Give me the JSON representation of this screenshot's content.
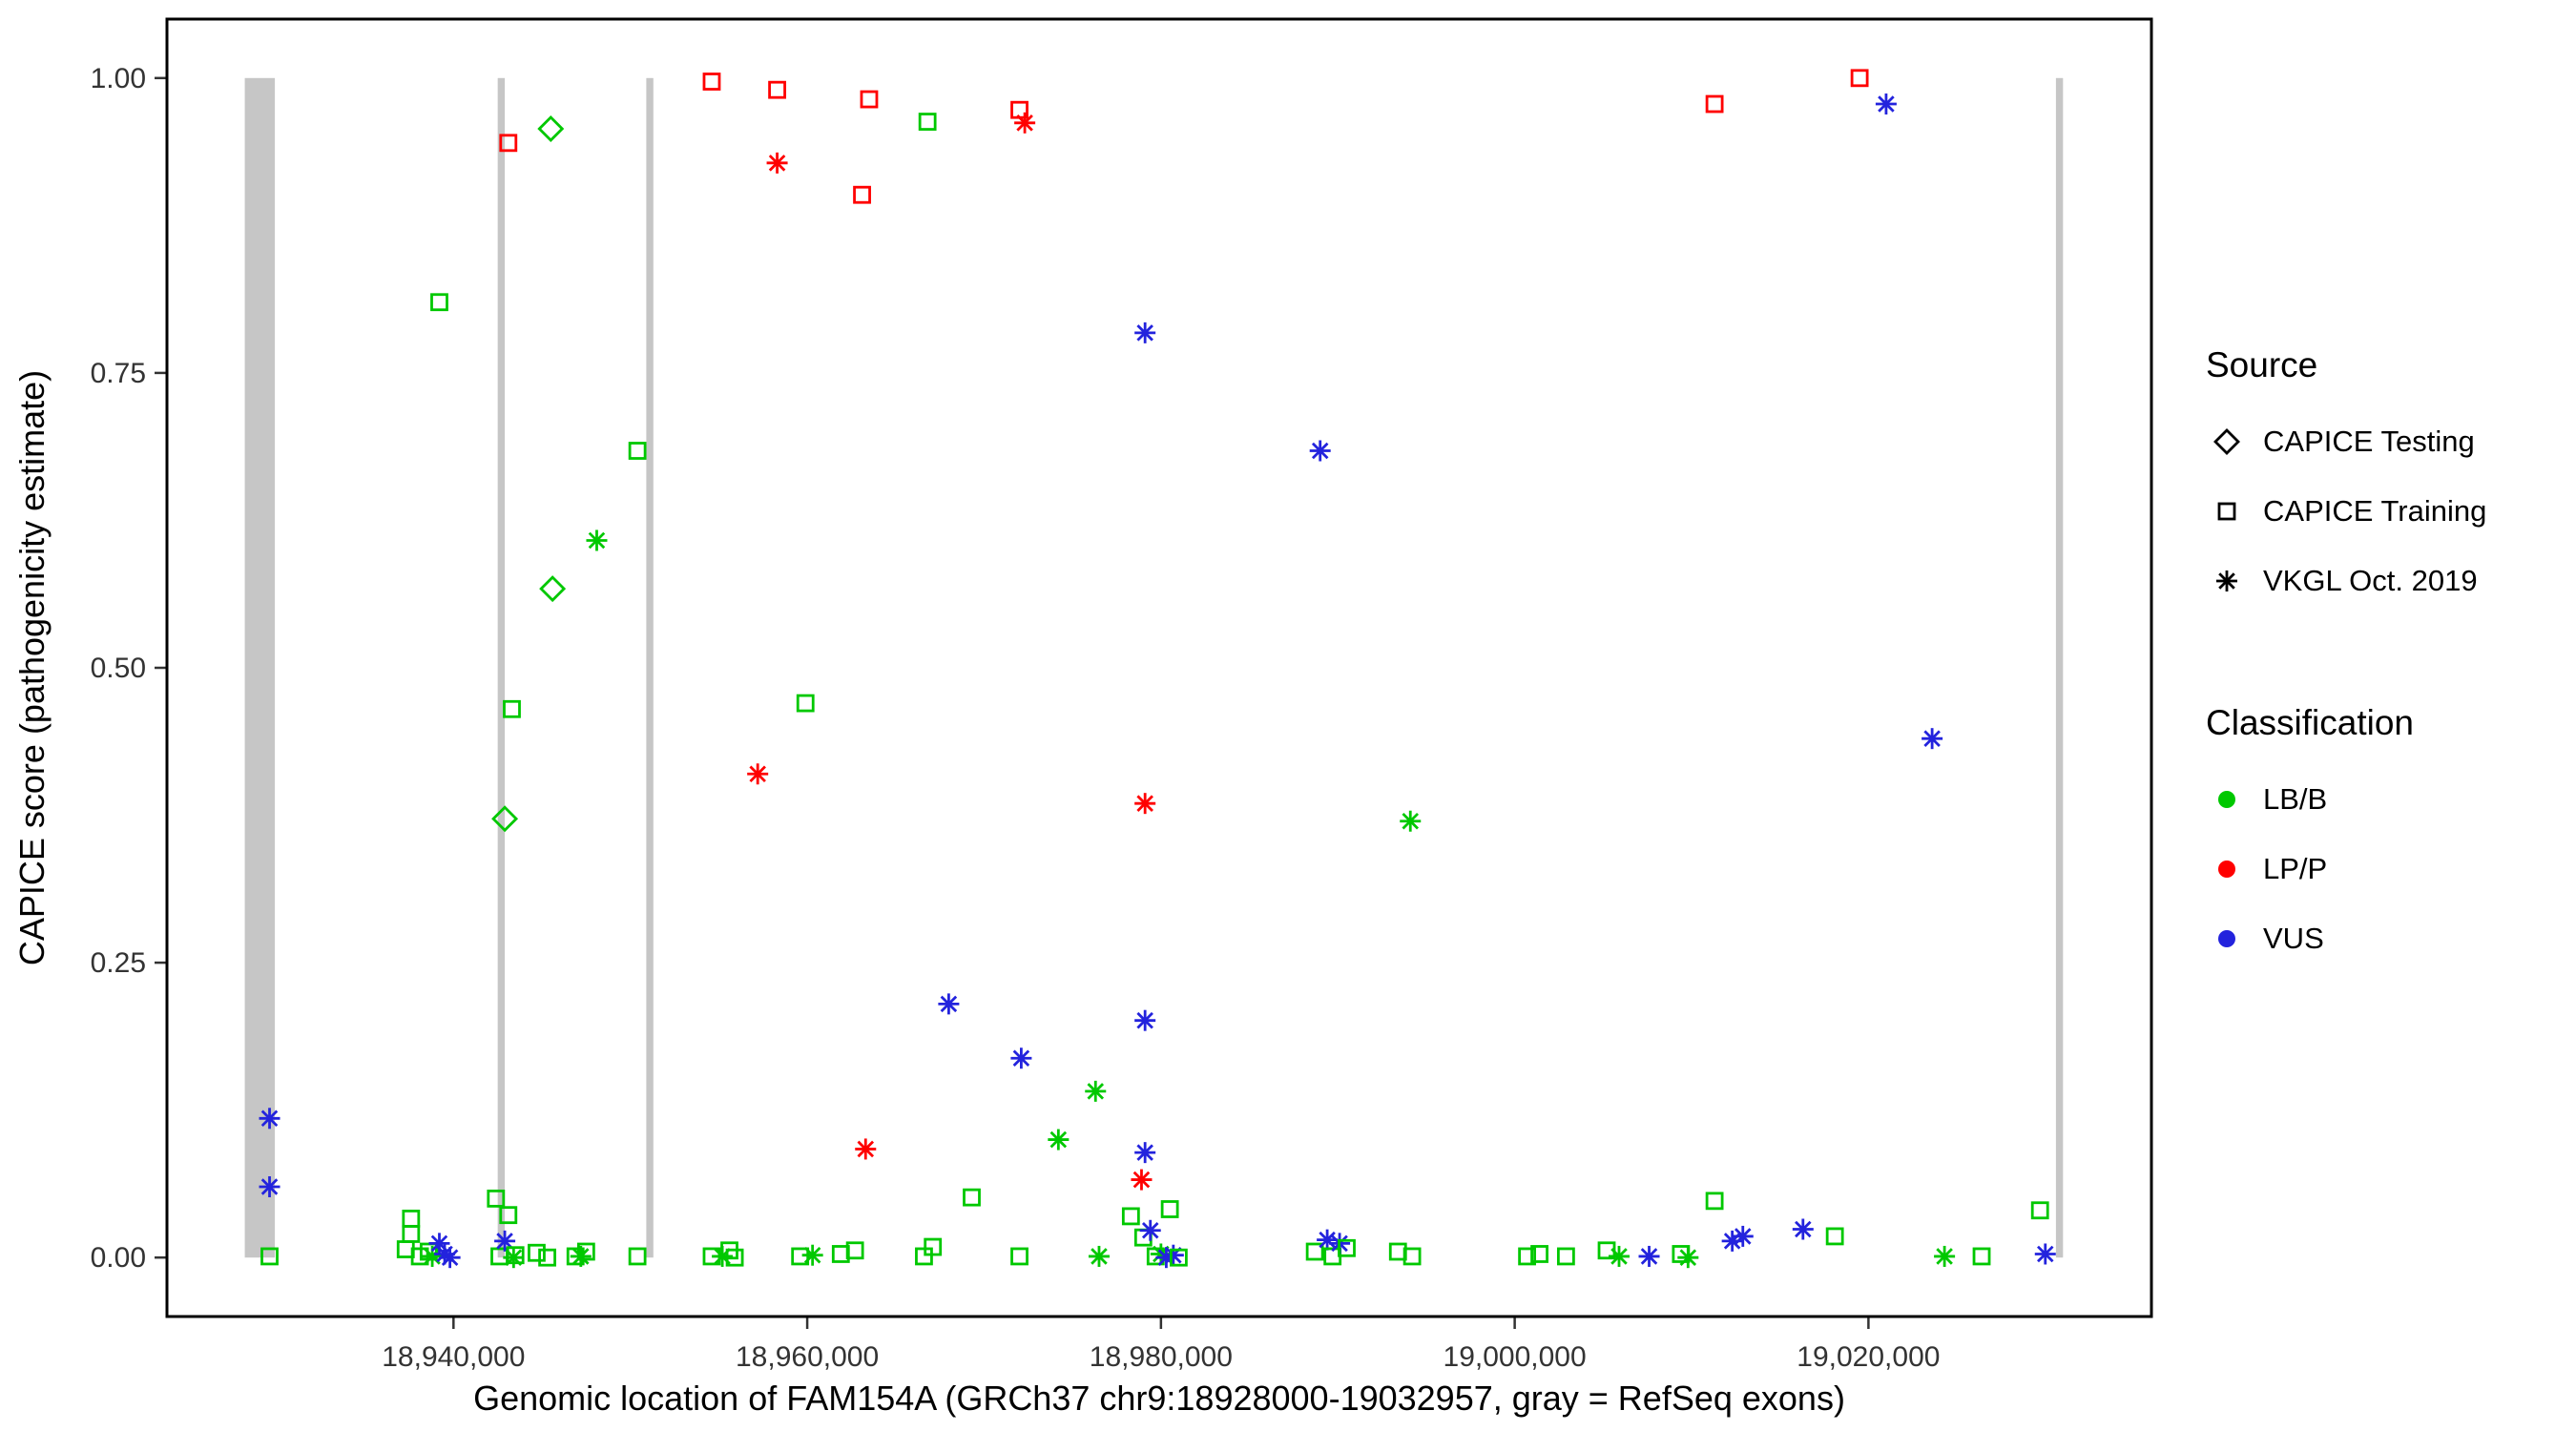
{
  "chart_data": {
    "type": "scatter",
    "x_title": "Genomic location of FAM154A (GRCh37 chr9:18928000-19032957, gray = RefSeq exons)",
    "y_title": "CAPICE score (pathogenicity estimate)",
    "x_domain": [
      18923800,
      19036000
    ],
    "y_domain": [
      -0.05,
      1.05
    ],
    "x_ticks": [
      {
        "v": 18940000,
        "label": "18,940,000"
      },
      {
        "v": 18960000,
        "label": "18,960,000"
      },
      {
        "v": 18980000,
        "label": "18,980,000"
      },
      {
        "v": 19000000,
        "label": "19,000,000"
      },
      {
        "v": 19020000,
        "label": "19,020,000"
      }
    ],
    "y_ticks": [
      {
        "v": 0.0,
        "label": "0.00"
      },
      {
        "v": 0.25,
        "label": "0.25"
      },
      {
        "v": 0.5,
        "label": "0.50"
      },
      {
        "v": 0.75,
        "label": "0.75"
      },
      {
        "v": 1.0,
        "label": "1.00"
      }
    ],
    "exon_color": "#C6C6C6",
    "exons": [
      {
        "start": 18928200,
        "end": 18929900
      },
      {
        "start": 18942500,
        "end": 18942900
      },
      {
        "start": 18950900,
        "end": 18951300
      },
      {
        "start": 19030600,
        "end": 19031000
      }
    ],
    "colors": {
      "LB/B": "#00C800",
      "LP/P": "#FF0000",
      "VUS": "#2323DD"
    },
    "source_shapes": {
      "testing": "diamond",
      "training": "square",
      "vkgl": "asterisk"
    },
    "points": [
      [
        18943100,
        0.945,
        "training",
        "LP/P"
      ],
      [
        18954600,
        0.997,
        "training",
        "LP/P"
      ],
      [
        18958300,
        0.99,
        "training",
        "LP/P"
      ],
      [
        18963500,
        0.982,
        "training",
        "LP/P"
      ],
      [
        18963100,
        0.901,
        "training",
        "LP/P"
      ],
      [
        18972000,
        0.973,
        "training",
        "LP/P"
      ],
      [
        19011300,
        0.978,
        "training",
        "LP/P"
      ],
      [
        19019500,
        1.0,
        "training",
        "LP/P"
      ],
      [
        18958300,
        0.928,
        "vkgl",
        "LP/P"
      ],
      [
        18972300,
        0.962,
        "vkgl",
        "LP/P"
      ],
      [
        18957200,
        0.41,
        "vkgl",
        "LP/P"
      ],
      [
        18979100,
        0.385,
        "vkgl",
        "LP/P"
      ],
      [
        18963300,
        0.092,
        "vkgl",
        "LP/P"
      ],
      [
        18978900,
        0.066,
        "vkgl",
        "LP/P"
      ],
      [
        18945500,
        0.957,
        "testing",
        "LB/B"
      ],
      [
        18945600,
        0.567,
        "testing",
        "LB/B"
      ],
      [
        18942900,
        0.372,
        "testing",
        "LB/B"
      ],
      [
        18939200,
        0.81,
        "training",
        "LB/B"
      ],
      [
        18950400,
        0.684,
        "training",
        "LB/B"
      ],
      [
        18943300,
        0.465,
        "training",
        "LB/B"
      ],
      [
        18959900,
        0.47,
        "training",
        "LB/B"
      ],
      [
        18966800,
        0.963,
        "training",
        "LB/B"
      ],
      [
        18948100,
        0.608,
        "vkgl",
        "LB/B"
      ],
      [
        18994100,
        0.37,
        "vkgl",
        "LB/B"
      ],
      [
        18976300,
        0.141,
        "vkgl",
        "LB/B"
      ],
      [
        18974200,
        0.1,
        "vkgl",
        "LB/B"
      ],
      [
        18979100,
        0.784,
        "vkgl",
        "VUS"
      ],
      [
        18989000,
        0.684,
        "vkgl",
        "VUS"
      ],
      [
        19021000,
        0.978,
        "vkgl",
        "VUS"
      ],
      [
        19023600,
        0.44,
        "vkgl",
        "VUS"
      ],
      [
        18968000,
        0.215,
        "vkgl",
        "VUS"
      ],
      [
        18972100,
        0.169,
        "vkgl",
        "VUS"
      ],
      [
        18979100,
        0.201,
        "vkgl",
        "VUS"
      ],
      [
        18979100,
        0.089,
        "vkgl",
        "VUS"
      ],
      [
        18929600,
        0.118,
        "vkgl",
        "VUS"
      ],
      [
        18929600,
        0.06,
        "vkgl",
        "VUS"
      ],
      [
        18929600,
        0.001,
        "training",
        "LB/B"
      ],
      [
        18937600,
        0.033,
        "training",
        "LB/B"
      ],
      [
        18937600,
        0.02,
        "training",
        "LB/B"
      ],
      [
        18937300,
        0.007,
        "training",
        "LB/B"
      ],
      [
        18938100,
        0.001,
        "training",
        "LB/B"
      ],
      [
        18938600,
        0.005,
        "training",
        "LB/B"
      ],
      [
        18938800,
        0.001,
        "vkgl",
        "LB/B"
      ],
      [
        18939200,
        0.012,
        "vkgl",
        "VUS"
      ],
      [
        18939500,
        0.003,
        "vkgl",
        "VUS"
      ],
      [
        18939800,
        0.0,
        "vkgl",
        "VUS"
      ],
      [
        18942400,
        0.05,
        "training",
        "LB/B"
      ],
      [
        18943100,
        0.036,
        "training",
        "LB/B"
      ],
      [
        18942600,
        0.001,
        "training",
        "LB/B"
      ],
      [
        18942900,
        0.014,
        "vkgl",
        "VUS"
      ],
      [
        18943500,
        0.002,
        "training",
        "LB/B"
      ],
      [
        18943400,
        0.0,
        "vkgl",
        "LB/B"
      ],
      [
        18944700,
        0.004,
        "training",
        "LB/B"
      ],
      [
        18945300,
        0.0,
        "training",
        "LB/B"
      ],
      [
        18946900,
        0.001,
        "training",
        "LB/B"
      ],
      [
        18947500,
        0.005,
        "training",
        "LB/B"
      ],
      [
        18947200,
        0.001,
        "vkgl",
        "LB/B"
      ],
      [
        18950400,
        0.001,
        "training",
        "LB/B"
      ],
      [
        18954600,
        0.001,
        "training",
        "LB/B"
      ],
      [
        18955200,
        0.001,
        "vkgl",
        "LB/B"
      ],
      [
        18955600,
        0.006,
        "training",
        "LB/B"
      ],
      [
        18955900,
        0.0,
        "training",
        "LB/B"
      ],
      [
        18959600,
        0.001,
        "training",
        "LB/B"
      ],
      [
        18960300,
        0.002,
        "vkgl",
        "LB/B"
      ],
      [
        18961900,
        0.003,
        "training",
        "LB/B"
      ],
      [
        18962700,
        0.006,
        "training",
        "LB/B"
      ],
      [
        18966600,
        0.001,
        "training",
        "LB/B"
      ],
      [
        18967100,
        0.009,
        "training",
        "LB/B"
      ],
      [
        18969300,
        0.051,
        "training",
        "LB/B"
      ],
      [
        18972000,
        0.001,
        "training",
        "LB/B"
      ],
      [
        18976500,
        0.001,
        "vkgl",
        "LB/B"
      ],
      [
        18978300,
        0.035,
        "training",
        "LB/B"
      ],
      [
        18979000,
        0.017,
        "training",
        "LB/B"
      ],
      [
        18979400,
        0.023,
        "vkgl",
        "VUS"
      ],
      [
        18980500,
        0.041,
        "training",
        "LB/B"
      ],
      [
        18979700,
        0.001,
        "training",
        "LB/B"
      ],
      [
        18980000,
        0.003,
        "vkgl",
        "LB/B"
      ],
      [
        18980300,
        0.0,
        "vkgl",
        "VUS"
      ],
      [
        18980700,
        0.002,
        "vkgl",
        "VUS"
      ],
      [
        18981000,
        0.0,
        "training",
        "LB/B"
      ],
      [
        18988700,
        0.005,
        "training",
        "LB/B"
      ],
      [
        18989400,
        0.015,
        "vkgl",
        "VUS"
      ],
      [
        18989700,
        0.001,
        "training",
        "LB/B"
      ],
      [
        18990100,
        0.012,
        "vkgl",
        "VUS"
      ],
      [
        18990500,
        0.008,
        "training",
        "LB/B"
      ],
      [
        18993400,
        0.005,
        "training",
        "LB/B"
      ],
      [
        18994200,
        0.001,
        "training",
        "LB/B"
      ],
      [
        19000700,
        0.001,
        "training",
        "LB/B"
      ],
      [
        19001400,
        0.003,
        "training",
        "LB/B"
      ],
      [
        19002900,
        0.001,
        "training",
        "LB/B"
      ],
      [
        19005200,
        0.006,
        "training",
        "LB/B"
      ],
      [
        19005900,
        0.001,
        "vkgl",
        "LB/B"
      ],
      [
        19007600,
        0.001,
        "vkgl",
        "VUS"
      ],
      [
        19009400,
        0.003,
        "training",
        "LB/B"
      ],
      [
        19009800,
        0.0,
        "vkgl",
        "LB/B"
      ],
      [
        19011300,
        0.048,
        "training",
        "LB/B"
      ],
      [
        19012300,
        0.014,
        "vkgl",
        "VUS"
      ],
      [
        19012900,
        0.018,
        "vkgl",
        "VUS"
      ],
      [
        19016300,
        0.024,
        "vkgl",
        "VUS"
      ],
      [
        19018100,
        0.018,
        "training",
        "LB/B"
      ],
      [
        19024300,
        0.001,
        "vkgl",
        "LB/B"
      ],
      [
        19026400,
        0.001,
        "training",
        "LB/B"
      ],
      [
        19029700,
        0.04,
        "training",
        "LB/B"
      ],
      [
        19030000,
        0.003,
        "vkgl",
        "VUS"
      ]
    ]
  },
  "legend": {
    "position": "right",
    "source": {
      "title": "Source",
      "items": [
        {
          "label": "CAPICE Testing",
          "shape": "diamond"
        },
        {
          "label": "CAPICE Training",
          "shape": "square"
        },
        {
          "label": "VKGL Oct. 2019",
          "shape": "asterisk"
        }
      ]
    },
    "classification": {
      "title": "Classification",
      "items": [
        {
          "label": "LB/B",
          "color": "#00C800"
        },
        {
          "label": "LP/P",
          "color": "#FF0000"
        },
        {
          "label": "VUS",
          "color": "#2323DD"
        }
      ]
    }
  }
}
